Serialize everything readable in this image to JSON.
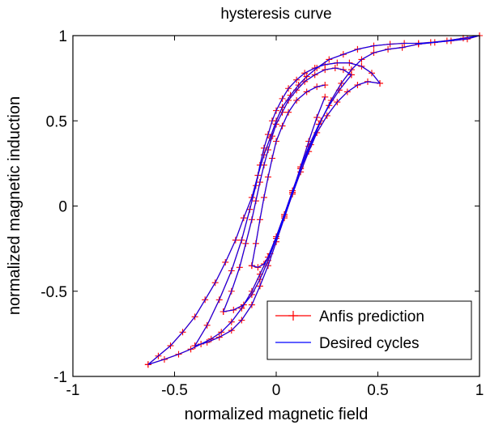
{
  "chart_data": {
    "type": "line",
    "title": "hysteresis curve",
    "xlabel": "normalized magnetic field",
    "ylabel": "normalized magnetic induction",
    "xlim": [
      -1,
      1
    ],
    "ylim": [
      -1,
      1
    ],
    "xticks": [
      -1,
      -0.5,
      0,
      0.5,
      1
    ],
    "yticks": [
      -1,
      -0.5,
      0,
      0.5,
      1
    ],
    "xtick_labels": [
      "-1",
      "-0.5",
      "0",
      "0.5",
      "1"
    ],
    "ytick_labels": [
      "-1",
      "-0.5",
      "0",
      "0.5",
      "1"
    ],
    "grid": false,
    "legend_position": "bottom-right",
    "series": [
      {
        "name": "Anfis prediction",
        "color": "#ff0000",
        "marker": "plus",
        "paths": [
          {
            "x": [
              -0.63,
              -0.55,
              -0.48,
              -0.42,
              -0.37,
              -0.32,
              -0.27,
              -0.22,
              -0.17,
              -0.12,
              -0.08,
              -0.04,
              0.0,
              0.04,
              0.08,
              0.12,
              0.17,
              0.22,
              0.27,
              0.32,
              0.37,
              0.42,
              0.48,
              0.55,
              0.62,
              0.7,
              0.78,
              0.86,
              0.94,
              1.0
            ],
            "y": [
              -0.93,
              -0.9,
              -0.87,
              -0.84,
              -0.81,
              -0.78,
              -0.74,
              -0.68,
              -0.6,
              -0.5,
              -0.4,
              -0.3,
              -0.18,
              -0.05,
              0.08,
              0.22,
              0.36,
              0.5,
              0.62,
              0.72,
              0.8,
              0.86,
              0.9,
              0.92,
              0.93,
              0.95,
              0.96,
              0.97,
              0.98,
              1.0
            ]
          },
          {
            "x": [
              -0.63,
              -0.58,
              -0.52,
              -0.46,
              -0.4,
              -0.35,
              -0.3,
              -0.25,
              -0.2,
              -0.16,
              -0.12,
              -0.09,
              -0.06,
              -0.03,
              0.0,
              0.03,
              0.07,
              0.11,
              0.15,
              0.2,
              0.26,
              0.33,
              0.4,
              0.48,
              0.56,
              0.63,
              0.7,
              0.76,
              0.84,
              0.92,
              1.0
            ],
            "y": [
              -0.93,
              -0.88,
              -0.82,
              -0.74,
              -0.65,
              -0.55,
              -0.45,
              -0.33,
              -0.2,
              -0.07,
              0.05,
              0.18,
              0.3,
              0.4,
              0.5,
              0.58,
              0.65,
              0.71,
              0.76,
              0.81,
              0.86,
              0.89,
              0.92,
              0.94,
              0.95,
              0.955,
              0.955,
              0.96,
              0.97,
              0.985,
              1.0
            ]
          },
          {
            "x": [
              -0.4,
              -0.34,
              -0.28,
              -0.22,
              -0.17,
              -0.13,
              -0.1,
              -0.08,
              -0.06,
              -0.04,
              -0.02,
              0.0,
              0.03,
              0.06,
              0.1,
              0.14,
              0.19,
              0.24,
              0.3,
              0.36,
              0.42,
              0.47,
              0.51
            ],
            "y": [
              -0.82,
              -0.7,
              -0.55,
              -0.38,
              -0.2,
              -0.02,
              0.12,
              0.24,
              0.34,
              0.42,
              0.5,
              0.56,
              0.63,
              0.69,
              0.74,
              0.78,
              0.81,
              0.83,
              0.84,
              0.84,
              0.82,
              0.78,
              0.72
            ]
          },
          {
            "x": [
              -0.4,
              -0.34,
              -0.28,
              -0.22,
              -0.17,
              -0.12,
              -0.08,
              -0.04,
              0.0,
              0.04,
              0.08,
              0.12,
              0.16,
              0.2,
              0.25,
              0.3,
              0.35,
              0.4,
              0.45,
              0.51
            ],
            "y": [
              -0.82,
              -0.8,
              -0.77,
              -0.73,
              -0.67,
              -0.58,
              -0.47,
              -0.35,
              -0.21,
              -0.07,
              0.07,
              0.2,
              0.32,
              0.43,
              0.53,
              0.61,
              0.67,
              0.71,
              0.73,
              0.72
            ]
          },
          {
            "x": [
              -0.26,
              -0.22,
              -0.18,
              -0.15,
              -0.12,
              -0.1,
              -0.08,
              -0.06,
              -0.04,
              -0.02,
              0.0,
              0.03,
              0.06,
              0.1,
              0.14,
              0.19,
              0.24,
              0.29,
              0.33,
              0.37
            ],
            "y": [
              -0.62,
              -0.5,
              -0.36,
              -0.22,
              -0.08,
              0.03,
              0.14,
              0.24,
              0.33,
              0.41,
              0.48,
              0.55,
              0.62,
              0.68,
              0.73,
              0.77,
              0.8,
              0.81,
              0.8,
              0.77
            ]
          },
          {
            "x": [
              -0.26,
              -0.21,
              -0.16,
              -0.12,
              -0.08,
              -0.04,
              0.0,
              0.04,
              0.08,
              0.12,
              0.16,
              0.21,
              0.26,
              0.31,
              0.37
            ],
            "y": [
              -0.62,
              -0.61,
              -0.58,
              -0.52,
              -0.43,
              -0.32,
              -0.19,
              -0.05,
              0.09,
              0.22,
              0.35,
              0.48,
              0.59,
              0.68,
              0.77
            ]
          },
          {
            "x": [
              -0.12,
              -0.1,
              -0.08,
              -0.06,
              -0.04,
              -0.02,
              0.0,
              0.03,
              0.06,
              0.1,
              0.15,
              0.2,
              0.24
            ],
            "y": [
              -0.35,
              -0.22,
              -0.08,
              0.05,
              0.17,
              0.28,
              0.38,
              0.47,
              0.55,
              0.62,
              0.67,
              0.7,
              0.71
            ]
          },
          {
            "x": [
              -0.12,
              -0.09,
              -0.06,
              -0.03,
              0.0,
              0.04,
              0.08,
              0.12,
              0.16,
              0.2,
              0.24
            ],
            "y": [
              -0.35,
              -0.36,
              -0.34,
              -0.28,
              -0.19,
              -0.06,
              0.08,
              0.23,
              0.38,
              0.52,
              0.64
            ]
          }
        ]
      },
      {
        "name": "Desired cycles",
        "color": "#0000ff",
        "marker": "none",
        "paths": [
          {
            "x": [
              -0.63,
              -0.55,
              -0.48,
              -0.42,
              -0.37,
              -0.32,
              -0.27,
              -0.22,
              -0.17,
              -0.12,
              -0.08,
              -0.04,
              0.0,
              0.04,
              0.08,
              0.12,
              0.17,
              0.22,
              0.27,
              0.32,
              0.37,
              0.42,
              0.48,
              0.55,
              0.62,
              0.7,
              0.78,
              0.86,
              0.94,
              1.0
            ],
            "y": [
              -0.93,
              -0.9,
              -0.87,
              -0.84,
              -0.81,
              -0.78,
              -0.74,
              -0.68,
              -0.6,
              -0.5,
              -0.4,
              -0.3,
              -0.18,
              -0.05,
              0.08,
              0.22,
              0.36,
              0.5,
              0.62,
              0.72,
              0.8,
              0.86,
              0.9,
              0.92,
              0.93,
              0.95,
              0.96,
              0.97,
              0.98,
              1.0
            ]
          },
          {
            "x": [
              -0.63,
              -0.58,
              -0.52,
              -0.46,
              -0.4,
              -0.35,
              -0.3,
              -0.25,
              -0.2,
              -0.16,
              -0.12,
              -0.09,
              -0.06,
              -0.03,
              0.0,
              0.03,
              0.07,
              0.11,
              0.15,
              0.2,
              0.26,
              0.33,
              0.4,
              0.48,
              0.56,
              0.63,
              0.7,
              0.76,
              0.84,
              0.92,
              1.0
            ],
            "y": [
              -0.93,
              -0.88,
              -0.82,
              -0.74,
              -0.65,
              -0.55,
              -0.45,
              -0.33,
              -0.2,
              -0.07,
              0.05,
              0.18,
              0.3,
              0.4,
              0.5,
              0.58,
              0.65,
              0.71,
              0.76,
              0.81,
              0.86,
              0.89,
              0.92,
              0.94,
              0.95,
              0.955,
              0.955,
              0.96,
              0.97,
              0.985,
              1.0
            ]
          },
          {
            "x": [
              -0.4,
              -0.34,
              -0.28,
              -0.22,
              -0.17,
              -0.13,
              -0.1,
              -0.08,
              -0.06,
              -0.04,
              -0.02,
              0.0,
              0.03,
              0.06,
              0.1,
              0.14,
              0.19,
              0.24,
              0.3,
              0.36,
              0.42,
              0.47,
              0.51
            ],
            "y": [
              -0.82,
              -0.7,
              -0.55,
              -0.38,
              -0.2,
              -0.02,
              0.12,
              0.24,
              0.34,
              0.42,
              0.5,
              0.56,
              0.63,
              0.69,
              0.74,
              0.78,
              0.81,
              0.83,
              0.84,
              0.84,
              0.82,
              0.78,
              0.72
            ]
          },
          {
            "x": [
              -0.4,
              -0.34,
              -0.28,
              -0.22,
              -0.17,
              -0.12,
              -0.08,
              -0.04,
              0.0,
              0.04,
              0.08,
              0.12,
              0.16,
              0.2,
              0.25,
              0.3,
              0.35,
              0.4,
              0.45,
              0.51
            ],
            "y": [
              -0.82,
              -0.8,
              -0.77,
              -0.73,
              -0.67,
              -0.58,
              -0.47,
              -0.35,
              -0.21,
              -0.07,
              0.07,
              0.2,
              0.32,
              0.43,
              0.53,
              0.61,
              0.67,
              0.71,
              0.73,
              0.72
            ]
          },
          {
            "x": [
              -0.26,
              -0.22,
              -0.18,
              -0.15,
              -0.12,
              -0.1,
              -0.08,
              -0.06,
              -0.04,
              -0.02,
              0.0,
              0.03,
              0.06,
              0.1,
              0.14,
              0.19,
              0.24,
              0.29,
              0.33,
              0.37
            ],
            "y": [
              -0.62,
              -0.5,
              -0.36,
              -0.22,
              -0.08,
              0.03,
              0.14,
              0.24,
              0.33,
              0.41,
              0.48,
              0.55,
              0.62,
              0.68,
              0.73,
              0.77,
              0.8,
              0.81,
              0.8,
              0.77
            ]
          },
          {
            "x": [
              -0.26,
              -0.21,
              -0.16,
              -0.12,
              -0.08,
              -0.04,
              0.0,
              0.04,
              0.08,
              0.12,
              0.16,
              0.21,
              0.26,
              0.31,
              0.37
            ],
            "y": [
              -0.62,
              -0.61,
              -0.58,
              -0.52,
              -0.43,
              -0.32,
              -0.19,
              -0.05,
              0.09,
              0.22,
              0.35,
              0.48,
              0.59,
              0.68,
              0.77
            ]
          },
          {
            "x": [
              -0.12,
              -0.1,
              -0.08,
              -0.06,
              -0.04,
              -0.02,
              0.0,
              0.03,
              0.06,
              0.1,
              0.15,
              0.2,
              0.24
            ],
            "y": [
              -0.35,
              -0.22,
              -0.08,
              0.05,
              0.17,
              0.28,
              0.38,
              0.47,
              0.55,
              0.62,
              0.67,
              0.7,
              0.71
            ]
          },
          {
            "x": [
              -0.12,
              -0.09,
              -0.06,
              -0.03,
              0.0,
              0.04,
              0.08,
              0.12,
              0.16,
              0.2,
              0.24
            ],
            "y": [
              -0.35,
              -0.36,
              -0.34,
              -0.28,
              -0.19,
              -0.06,
              0.08,
              0.23,
              0.38,
              0.52,
              0.64
            ]
          }
        ]
      }
    ]
  }
}
